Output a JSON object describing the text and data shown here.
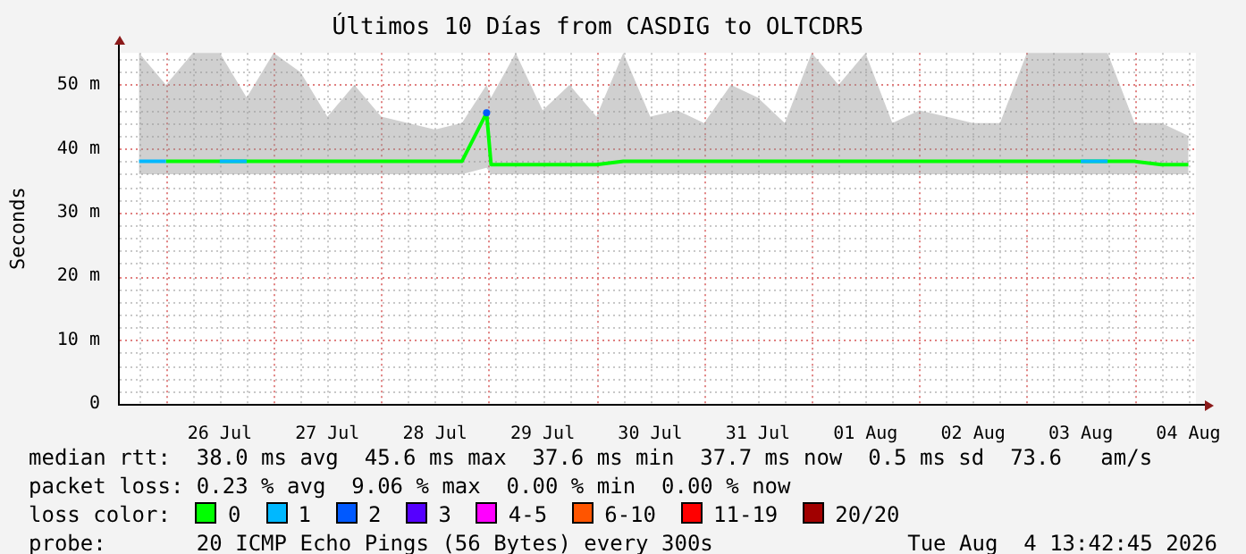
{
  "chart_data": {
    "type": "line",
    "title": "Últimos 10 Días from CASDIG to OLTCDR5",
    "ylabel": "Seconds",
    "legend_title": "loss color:",
    "legend": "bottom",
    "grid": true,
    "marker": "none",
    "line_style": "solid",
    "x": [
      "2026-07-25T18:00",
      "2026-07-26T00:00",
      "2026-07-26T06:00",
      "2026-07-26T12:00",
      "2026-07-26T18:00",
      "2026-07-27T00:00",
      "2026-07-27T06:00",
      "2026-07-27T12:00",
      "2026-07-27T18:00",
      "2026-07-28T00:00",
      "2026-07-28T06:00",
      "2026-07-28T12:00",
      "2026-07-28T18:00",
      "2026-07-28T23:30",
      "2026-07-29T00:30",
      "2026-07-29T06:00",
      "2026-07-29T12:00",
      "2026-07-29T18:00",
      "2026-07-30T00:00",
      "2026-07-30T06:00",
      "2026-07-30T12:00",
      "2026-07-30T18:00",
      "2026-07-31T00:00",
      "2026-07-31T06:00",
      "2026-07-31T12:00",
      "2026-07-31T18:00",
      "2026-08-01T00:00",
      "2026-08-01T06:00",
      "2026-08-01T12:00",
      "2026-08-01T18:00",
      "2026-08-02T00:00",
      "2026-08-02T06:00",
      "2026-08-02T12:00",
      "2026-08-02T18:00",
      "2026-08-03T00:00",
      "2026-08-03T06:00",
      "2026-08-03T12:00",
      "2026-08-03T18:00",
      "2026-08-04T00:00",
      "2026-08-04T06:00",
      "2026-08-04T12:00"
    ],
    "series": [
      {
        "name": "0",
        "color": "#00ff00",
        "values": [
          null,
          38,
          38,
          38,
          38,
          38,
          38,
          38,
          38,
          38,
          38,
          38,
          38,
          45.6,
          37.5,
          37.5,
          37.5,
          37.5,
          37.5,
          38,
          38,
          38,
          38,
          38,
          38,
          38,
          38,
          38,
          38,
          38,
          38,
          38,
          38,
          38,
          38,
          38,
          38,
          38,
          38,
          37.5,
          37.5
        ],
        "lower": [
          36,
          36,
          36,
          36,
          36,
          36,
          36,
          36,
          36,
          36,
          36,
          36,
          36,
          37,
          36,
          36,
          36,
          36,
          36,
          36,
          36,
          36,
          36,
          36,
          36,
          36,
          36,
          36,
          36,
          36,
          36,
          36,
          36,
          36,
          36,
          36,
          36,
          36,
          36,
          36,
          36
        ],
        "upper": [
          55,
          50,
          55,
          55,
          48,
          55,
          52,
          45,
          50,
          45,
          44,
          43,
          44,
          50,
          48,
          55,
          46,
          50,
          45,
          55,
          45,
          46,
          44,
          50,
          48,
          44,
          55,
          50,
          55,
          44,
          46,
          45,
          44,
          44,
          55,
          55,
          55,
          55,
          44,
          44,
          42
        ]
      },
      {
        "name": "1",
        "color": "#00b8ff",
        "values": [
          38,
          38,
          null,
          38,
          38,
          null,
          null,
          null,
          null,
          null,
          null,
          null,
          null,
          null,
          null,
          null,
          null,
          null,
          null,
          null,
          null,
          null,
          null,
          null,
          null,
          null,
          null,
          null,
          null,
          null,
          null,
          null,
          null,
          null,
          null,
          null,
          38,
          38,
          null,
          null,
          null
        ]
      },
      {
        "name": "2",
        "color": "#0059ff",
        "marker": "circle",
        "values": [
          null,
          null,
          null,
          null,
          null,
          null,
          null,
          null,
          null,
          null,
          null,
          null,
          null,
          45.6,
          null,
          null,
          null,
          null,
          null,
          null,
          null,
          null,
          null,
          null,
          null,
          null,
          null,
          null,
          null,
          null,
          null,
          null,
          null,
          null,
          null,
          null,
          null,
          null,
          null,
          null,
          null
        ]
      },
      {
        "name": "3",
        "color": "#5500ff",
        "values": [
          null,
          null,
          null,
          null,
          null,
          null,
          null,
          null,
          null,
          null,
          null,
          null,
          null,
          null,
          null,
          null,
          null,
          null,
          null,
          null,
          null,
          null,
          null,
          null,
          null,
          null,
          null,
          null,
          null,
          null,
          null,
          null,
          null,
          null,
          null,
          null,
          null,
          null,
          null,
          null,
          null
        ]
      },
      {
        "name": "4-5",
        "color": "#ff00ff",
        "values": [
          null,
          null,
          null,
          null,
          null,
          null,
          null,
          null,
          null,
          null,
          null,
          null,
          null,
          null,
          null,
          null,
          null,
          null,
          null,
          null,
          null,
          null,
          null,
          null,
          null,
          null,
          null,
          null,
          null,
          null,
          null,
          null,
          null,
          null,
          null,
          null,
          null,
          null,
          null,
          null,
          null
        ]
      },
      {
        "name": "6-10",
        "color": "#ff5500",
        "values": [
          null,
          null,
          null,
          null,
          null,
          null,
          null,
          null,
          null,
          null,
          null,
          null,
          null,
          null,
          null,
          null,
          null,
          null,
          null,
          null,
          null,
          null,
          null,
          null,
          null,
          null,
          null,
          null,
          null,
          null,
          null,
          null,
          null,
          null,
          null,
          null,
          null,
          null,
          null,
          null,
          null
        ]
      },
      {
        "name": "11-19",
        "color": "#ff0000",
        "values": [
          null,
          null,
          null,
          null,
          null,
          null,
          null,
          null,
          null,
          null,
          null,
          null,
          null,
          null,
          null,
          null,
          null,
          null,
          null,
          null,
          null,
          null,
          null,
          null,
          null,
          null,
          null,
          null,
          null,
          null,
          null,
          null,
          null,
          null,
          null,
          null,
          null,
          null,
          null,
          null,
          null
        ]
      },
      {
        "name": "20/20",
        "color": "#a10000",
        "values": [
          null,
          null,
          null,
          null,
          null,
          null,
          null,
          null,
          null,
          null,
          null,
          null,
          null,
          null,
          null,
          null,
          null,
          null,
          null,
          null,
          null,
          null,
          null,
          null,
          null,
          null,
          null,
          null,
          null,
          null,
          null,
          null,
          null,
          null,
          null,
          null,
          null,
          null,
          null,
          null,
          null
        ]
      }
    ],
    "xlim": [
      "2026-07-25T13:42",
      "2026-08-04T13:42"
    ],
    "xticks": [
      {
        "value": "2026-07-25T18:00",
        "label": null
      },
      {
        "value": "2026-07-26T00:00",
        "label": null
      },
      {
        "value": "2026-07-26T06:00",
        "label": null
      },
      {
        "value": "2026-07-26T12:00",
        "label": "26 Jul"
      },
      {
        "value": "2026-07-26T18:00",
        "label": null
      },
      {
        "value": "2026-07-27T00:00",
        "label": null
      },
      {
        "value": "2026-07-27T06:00",
        "label": null
      },
      {
        "value": "2026-07-27T12:00",
        "label": "27 Jul"
      },
      {
        "value": "2026-07-27T18:00",
        "label": null
      },
      {
        "value": "2026-07-28T00:00",
        "label": null
      },
      {
        "value": "2026-07-28T06:00",
        "label": null
      },
      {
        "value": "2026-07-28T12:00",
        "label": "28 Jul"
      },
      {
        "value": "2026-07-28T18:00",
        "label": null
      },
      {
        "value": "2026-07-29T00:00",
        "label": null
      },
      {
        "value": "2026-07-29T06:00",
        "label": null
      },
      {
        "value": "2026-07-29T12:00",
        "label": "29 Jul"
      },
      {
        "value": "2026-07-29T18:00",
        "label": null
      },
      {
        "value": "2026-07-30T00:00",
        "label": null
      },
      {
        "value": "2026-07-30T06:00",
        "label": null
      },
      {
        "value": "2026-07-30T12:00",
        "label": "30 Jul"
      },
      {
        "value": "2026-07-30T18:00",
        "label": null
      },
      {
        "value": "2026-07-31T00:00",
        "label": null
      },
      {
        "value": "2026-07-31T06:00",
        "label": null
      },
      {
        "value": "2026-07-31T12:00",
        "label": "31 Jul"
      },
      {
        "value": "2026-07-31T18:00",
        "label": null
      },
      {
        "value": "2026-08-01T00:00",
        "label": null
      },
      {
        "value": "2026-08-01T06:00",
        "label": null
      },
      {
        "value": "2026-08-01T12:00",
        "label": "01 Aug"
      },
      {
        "value": "2026-08-01T18:00",
        "label": null
      },
      {
        "value": "2026-08-02T00:00",
        "label": null
      },
      {
        "value": "2026-08-02T06:00",
        "label": null
      },
      {
        "value": "2026-08-02T12:00",
        "label": "02 Aug"
      },
      {
        "value": "2026-08-02T18:00",
        "label": null
      },
      {
        "value": "2026-08-03T00:00",
        "label": null
      },
      {
        "value": "2026-08-03T06:00",
        "label": null
      },
      {
        "value": "2026-08-03T12:00",
        "label": "03 Aug"
      },
      {
        "value": "2026-08-03T18:00",
        "label": null
      },
      {
        "value": "2026-08-04T00:00",
        "label": null
      },
      {
        "value": "2026-08-04T06:00",
        "label": null
      },
      {
        "value": "2026-08-04T12:00",
        "label": "04 Aug"
      }
    ],
    "ylim": [
      0,
      55
    ],
    "yticks": [
      0,
      {
        "value": 2,
        "label": null
      },
      {
        "value": 4,
        "label": null
      },
      {
        "value": 6,
        "label": null
      },
      {
        "value": 8,
        "label": null
      },
      {
        "value": 10,
        "label": "10 m"
      },
      {
        "value": 12,
        "label": null
      },
      {
        "value": 14,
        "label": null
      },
      {
        "value": 16,
        "label": null
      },
      {
        "value": 18,
        "label": null
      },
      {
        "value": 20,
        "label": "20 m"
      },
      {
        "value": 22,
        "label": null
      },
      {
        "value": 24,
        "label": null
      },
      {
        "value": 26,
        "label": null
      },
      {
        "value": 28,
        "label": null
      },
      {
        "value": 30,
        "label": "30 m"
      },
      {
        "value": 32,
        "label": null
      },
      {
        "value": 34,
        "label": null
      },
      {
        "value": 36,
        "label": null
      },
      {
        "value": 38,
        "label": null
      },
      {
        "value": 40,
        "label": "40 m"
      },
      {
        "value": 42,
        "label": null
      },
      {
        "value": 44,
        "label": null
      },
      {
        "value": 46,
        "label": null
      },
      {
        "value": 48,
        "label": null
      },
      {
        "value": 50,
        "label": "50 m"
      },
      {
        "value": 52,
        "label": null
      },
      {
        "value": 54,
        "label": null
      }
    ],
    "annotations": [
      "median rtt:  38.0 ms avg  45.6 ms max  37.6 ms min  37.7 ms now  0.5 ms sd  73.6   am/s",
      "packet loss: 0.23 % avg  9.06 % max  0.00 % min  0.00 % now",
      "probe:       20 ICMP Echo Pings (56 Bytes) every 300s",
      "Tue Aug  4 13:42:45 2026"
    ]
  }
}
